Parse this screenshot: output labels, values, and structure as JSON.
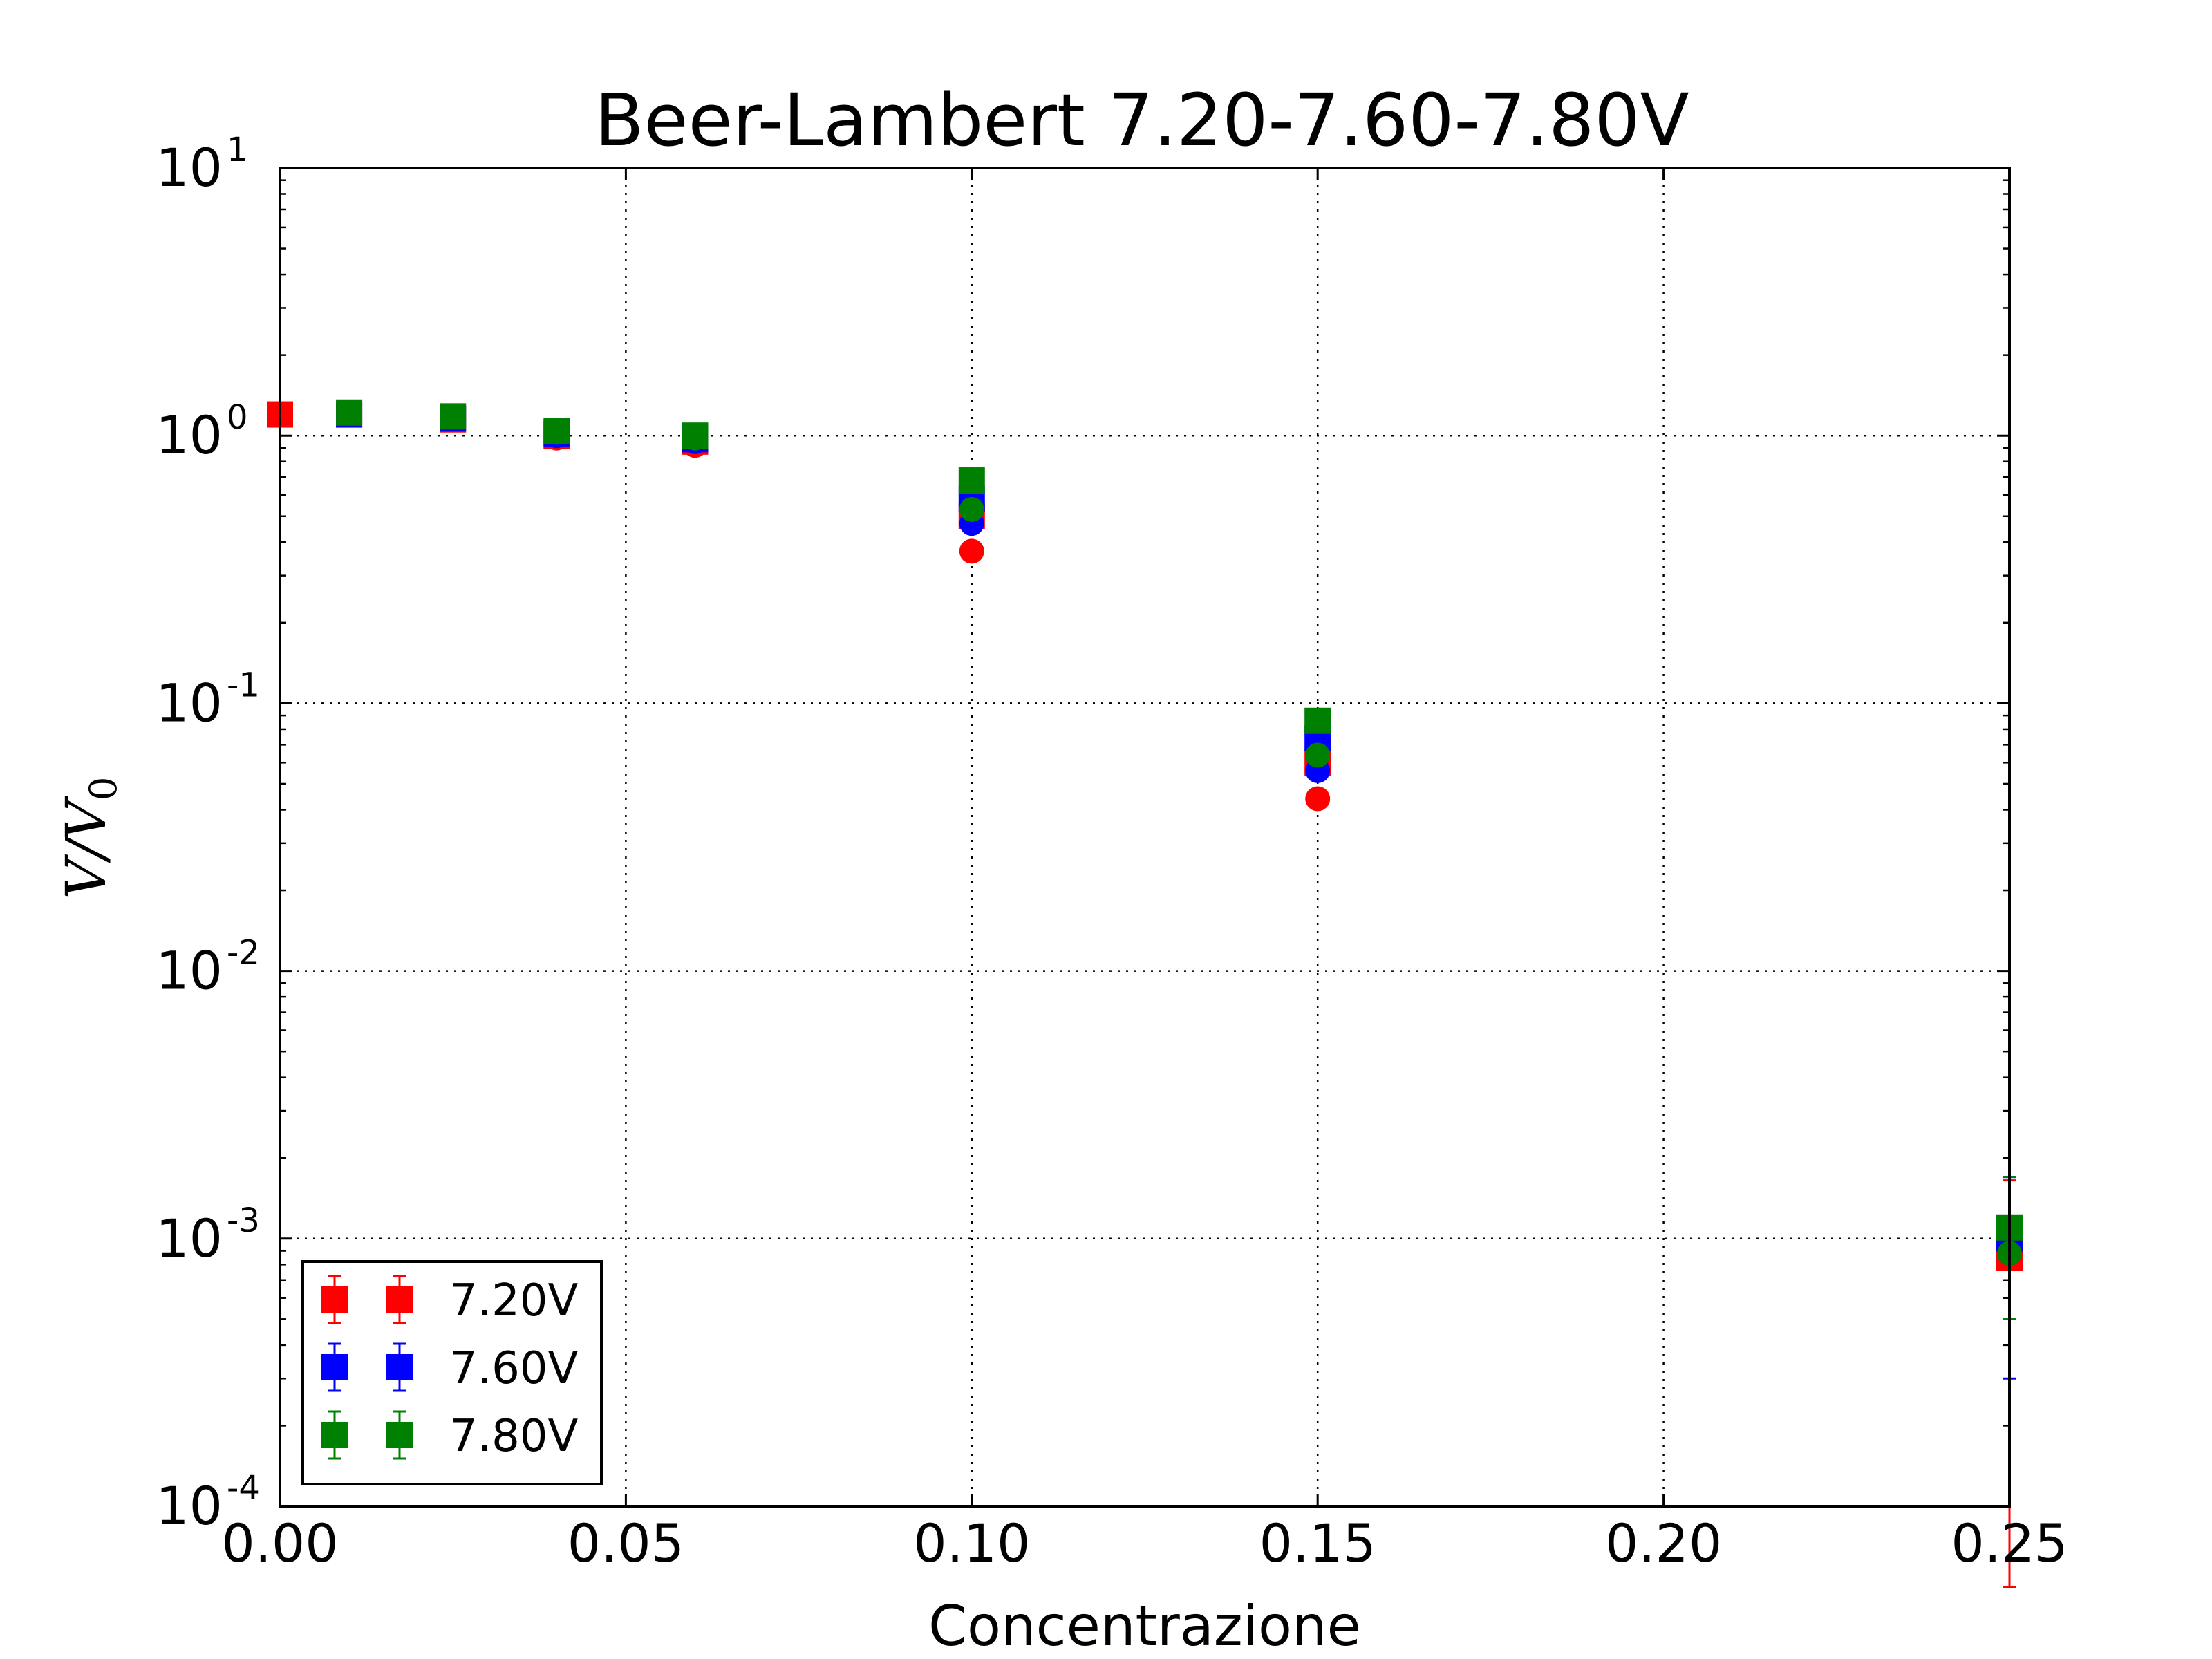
{
  "chart_data": {
    "type": "scatter",
    "title": "Beer-Lambert 7.20-7.60-7.80V",
    "xlabel": "Concentrazione",
    "ylabel": {
      "main": "V/V",
      "sub": "0"
    },
    "xlim": [
      0.0,
      0.25
    ],
    "ylim": [
      0.0001,
      10
    ],
    "yscale": "log",
    "grid": true,
    "legend_position": "lower-left",
    "xticks": [
      "0.00",
      "0.05",
      "0.10",
      "0.15",
      "0.20",
      "0.25"
    ],
    "yticks": [
      {
        "base": "10",
        "exp": "-4"
      },
      {
        "base": "10",
        "exp": "-3"
      },
      {
        "base": "10",
        "exp": "-2"
      },
      {
        "base": "10",
        "exp": "-1"
      },
      {
        "base": "10",
        "exp": "0"
      },
      {
        "base": "10",
        "exp": "1"
      }
    ],
    "series": [
      {
        "name": "7.20V",
        "color": "#ff0000",
        "squares": [
          {
            "x": 0.0,
            "y": 1.2,
            "err": 0.05
          },
          {
            "x": 0.01,
            "y": 1.2,
            "err": 0.05
          },
          {
            "x": 0.025,
            "y": 1.15,
            "err": 0.05
          },
          {
            "x": 0.04,
            "y": 1.0,
            "err": 0.05
          },
          {
            "x": 0.06,
            "y": 0.95,
            "err": 0.05
          },
          {
            "x": 0.1,
            "y": 0.5,
            "err": 0.03
          },
          {
            "x": 0.15,
            "y": 0.06,
            "err": 0.005
          },
          {
            "x": 0.25,
            "y": 0.00085,
            "err": 0.0008
          }
        ],
        "circles": [
          {
            "x": 0.01,
            "y": 1.2
          },
          {
            "x": 0.025,
            "y": 1.15
          },
          {
            "x": 0.04,
            "y": 0.98
          },
          {
            "x": 0.06,
            "y": 0.92
          },
          {
            "x": 0.1,
            "y": 0.37
          },
          {
            "x": 0.15,
            "y": 0.044
          },
          {
            "x": 0.25,
            "y": 0.00085
          }
        ]
      },
      {
        "name": "7.60V",
        "color": "#0000ff",
        "squares": [
          {
            "x": 0.01,
            "y": 1.2,
            "err": 0.05
          },
          {
            "x": 0.025,
            "y": 1.16,
            "err": 0.05
          },
          {
            "x": 0.04,
            "y": 1.02,
            "err": 0.05
          },
          {
            "x": 0.06,
            "y": 0.97,
            "err": 0.05
          },
          {
            "x": 0.1,
            "y": 0.58,
            "err": 0.03
          },
          {
            "x": 0.15,
            "y": 0.074,
            "err": 0.005
          },
          {
            "x": 0.25,
            "y": 0.001,
            "err": 0.0007
          }
        ],
        "circles": [
          {
            "x": 0.01,
            "y": 1.2
          },
          {
            "x": 0.025,
            "y": 1.16
          },
          {
            "x": 0.04,
            "y": 1.0
          },
          {
            "x": 0.06,
            "y": 0.95
          },
          {
            "x": 0.1,
            "y": 0.47
          },
          {
            "x": 0.15,
            "y": 0.056
          },
          {
            "x": 0.25,
            "y": 0.0009
          }
        ]
      },
      {
        "name": "7.80V",
        "color": "#008000",
        "squares": [
          {
            "x": 0.01,
            "y": 1.22,
            "err": 0.05
          },
          {
            "x": 0.025,
            "y": 1.18,
            "err": 0.05
          },
          {
            "x": 0.04,
            "y": 1.04,
            "err": 0.05
          },
          {
            "x": 0.06,
            "y": 1.0,
            "err": 0.05
          },
          {
            "x": 0.1,
            "y": 0.68,
            "err": 0.04
          },
          {
            "x": 0.15,
            "y": 0.086,
            "err": 0.006
          },
          {
            "x": 0.25,
            "y": 0.0011,
            "err": 0.0006
          }
        ],
        "circles": [
          {
            "x": 0.01,
            "y": 1.22
          },
          {
            "x": 0.025,
            "y": 1.18
          },
          {
            "x": 0.04,
            "y": 1.03
          },
          {
            "x": 0.06,
            "y": 0.98
          },
          {
            "x": 0.1,
            "y": 0.53
          },
          {
            "x": 0.15,
            "y": 0.064
          },
          {
            "x": 0.25,
            "y": 0.00088
          }
        ]
      }
    ]
  }
}
